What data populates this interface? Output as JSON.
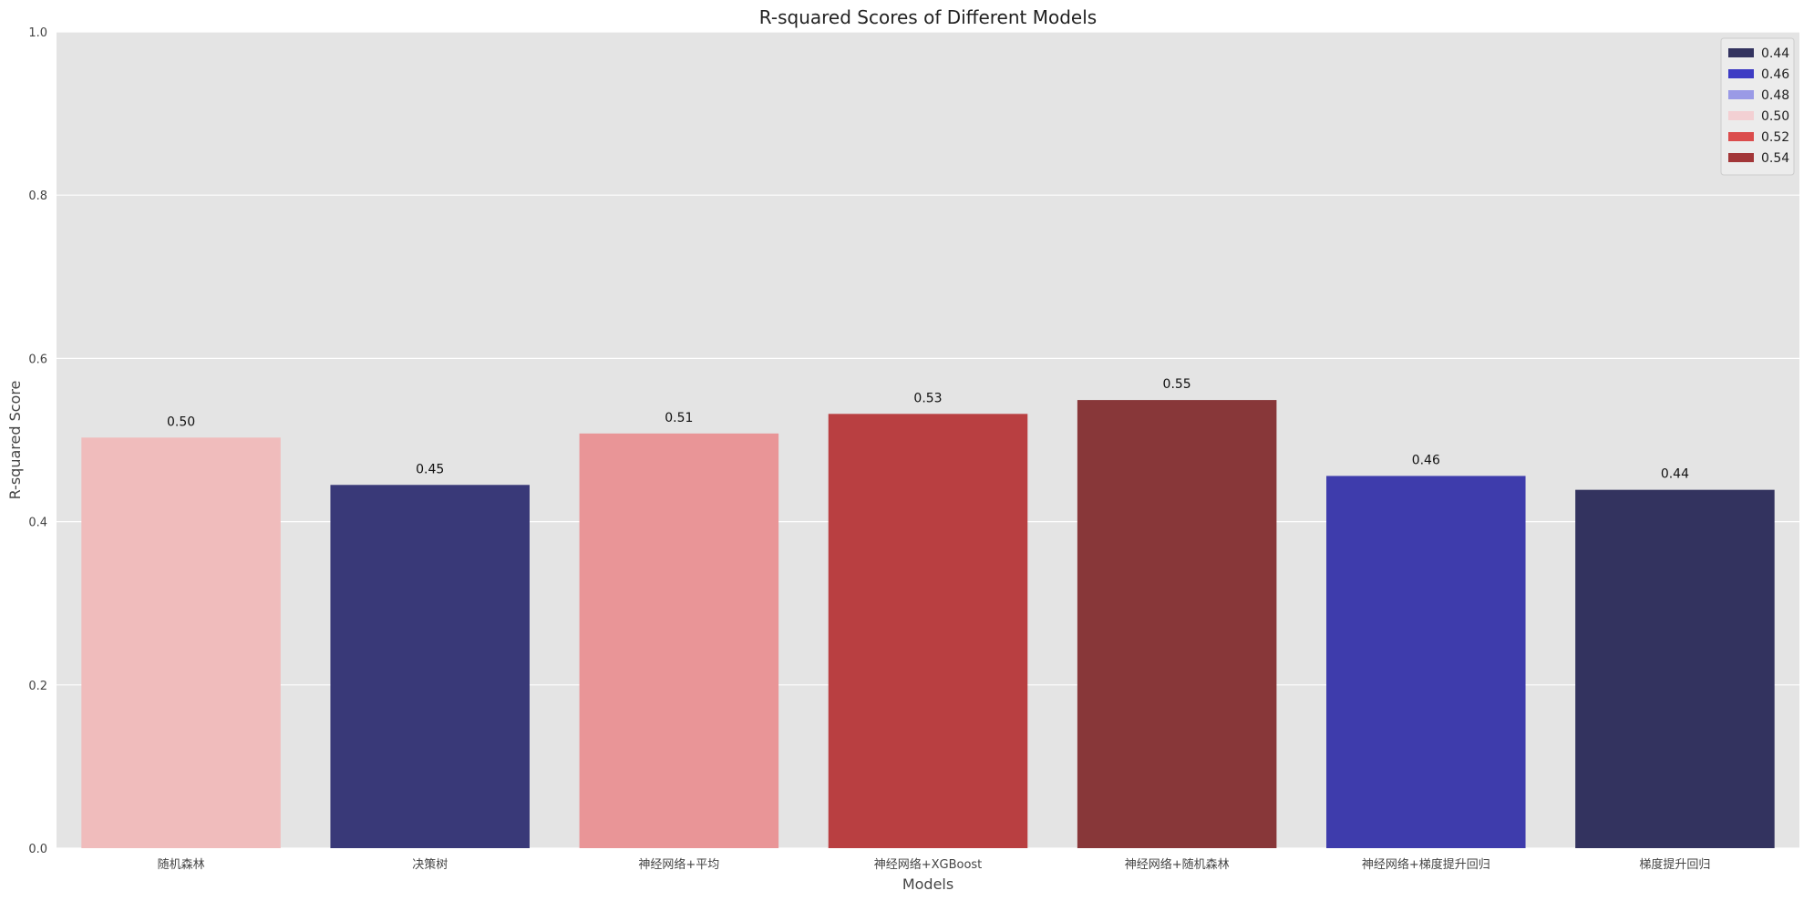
{
  "chart_data": {
    "type": "bar",
    "title": "R-squared Scores of Different Models",
    "xlabel": "Models",
    "ylabel": "R-squared Score",
    "ylim": [
      0,
      1.0
    ],
    "yticks": [
      "0.0",
      "0.2",
      "0.4",
      "0.6",
      "0.8",
      "1.0"
    ],
    "grid": true,
    "categories": [
      "随机森林",
      "决策树",
      "神经网络+平均",
      "神经网络+XGBoost",
      "神经网络+随机森林",
      "神经网络+梯度提升回归",
      "梯度提升回归"
    ],
    "values": [
      0.503,
      0.445,
      0.508,
      0.532,
      0.549,
      0.456,
      0.439
    ],
    "value_labels": [
      "0.50",
      "0.45",
      "0.51",
      "0.53",
      "0.55",
      "0.46",
      "0.44"
    ],
    "bar_colors": [
      "#f0bcbc",
      "#393978",
      "#e99597",
      "#b93f41",
      "#883739",
      "#3e3cac",
      "#33335f"
    ],
    "legend": {
      "placement": "top-right",
      "items": [
        {
          "label": "0.44",
          "color": "#33335f"
        },
        {
          "label": "0.46",
          "color": "#3e3cc4"
        },
        {
          "label": "0.48",
          "color": "#9a9ae6"
        },
        {
          "label": "0.50",
          "color": "#f3d0d3"
        },
        {
          "label": "0.52",
          "color": "#db4c4c"
        },
        {
          "label": "0.54",
          "color": "#a23638"
        }
      ]
    },
    "plot_background": "#e4e4e4",
    "grid_color": "#ffffff"
  }
}
